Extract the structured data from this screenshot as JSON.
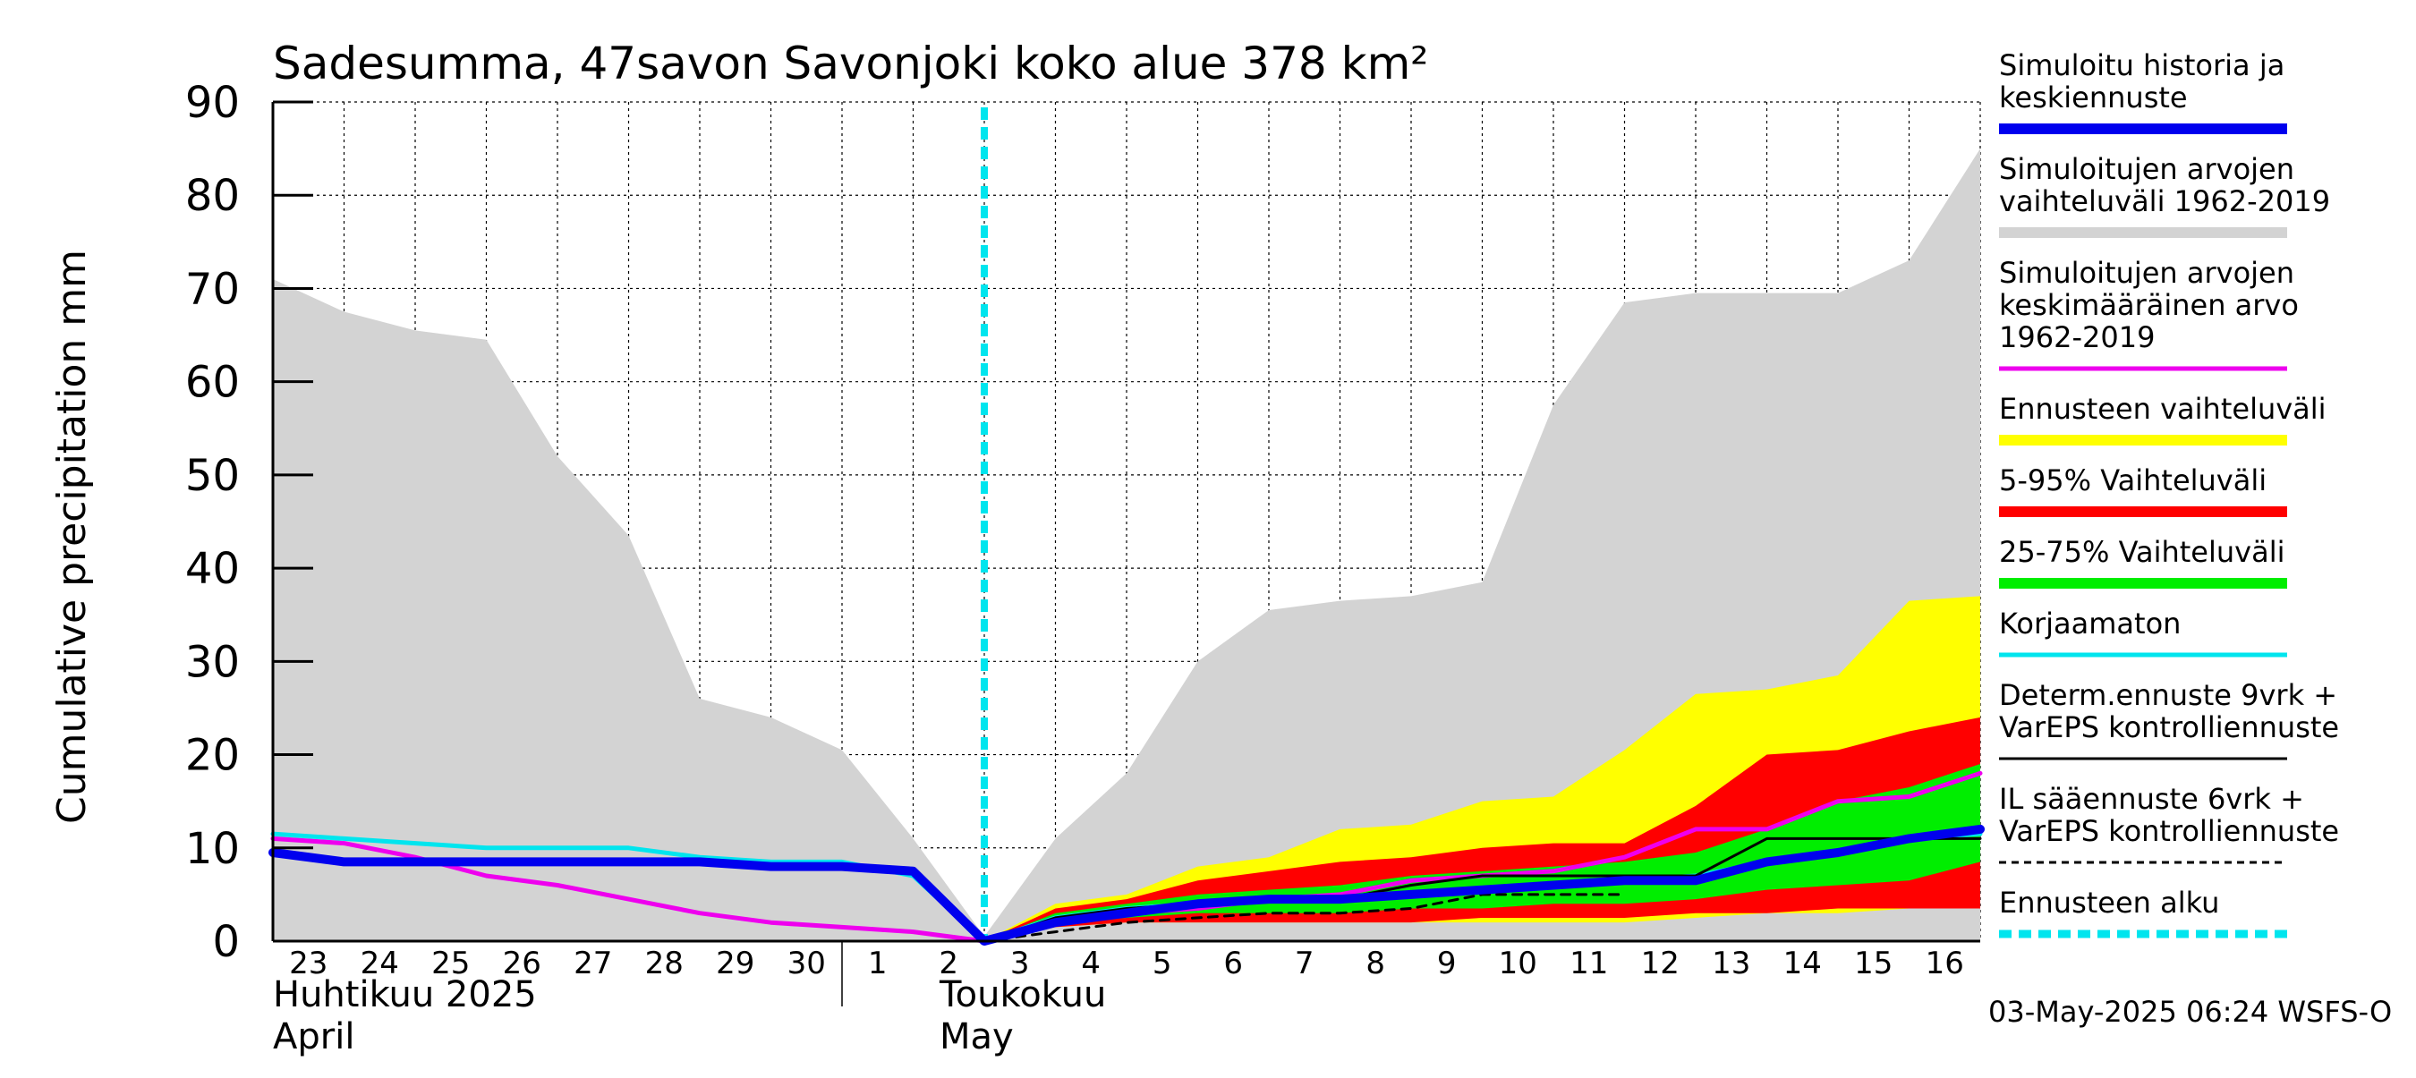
{
  "chart_data": {
    "type": "area",
    "title": "Sadesumma, 47savon Savonjoki koko alue 378 km²",
    "ylabel": "Cumulative precipitation   mm",
    "ylim": [
      0,
      90
    ],
    "yticks": [
      0,
      10,
      20,
      30,
      40,
      50,
      60,
      70,
      80,
      90
    ],
    "grid": true,
    "legend_position": "right",
    "x_labels": [
      "23",
      "24",
      "25",
      "26",
      "27",
      "28",
      "29",
      "30",
      "1",
      "2",
      "3",
      "4",
      "5",
      "6",
      "7",
      "8",
      "9",
      "10",
      "11",
      "12",
      "13",
      "14",
      "15",
      "16"
    ],
    "month_labels": [
      {
        "line1": "Huhtikuu  2025",
        "line2": "April"
      },
      {
        "line1": "Toukokuu",
        "line2": "May"
      }
    ],
    "forecast_start_index": 10,
    "series": [
      {
        "name": "Simuloitujen arvojen vaihteluväli 1962-2019",
        "kind": "band",
        "color": "#d3d3d3",
        "upper": [
          71,
          67.5,
          65.5,
          64.5,
          52,
          43.5,
          26,
          24,
          20.5,
          11,
          0.5,
          11,
          18,
          30,
          35.5,
          36.5,
          37,
          38.5,
          57.5,
          68.5,
          69.5,
          69.5,
          69.5,
          73,
          85
        ],
        "lower": [
          0,
          0,
          0,
          0,
          0,
          0,
          0,
          0,
          0,
          0,
          0,
          0,
          0,
          0,
          0,
          0,
          0,
          0,
          0,
          0,
          0,
          0,
          0,
          0,
          0
        ]
      },
      {
        "name": "Ennusteen vaihteluväli",
        "kind": "band",
        "color": "#ffff00",
        "upper": [
          null,
          null,
          null,
          null,
          null,
          null,
          null,
          null,
          null,
          null,
          0,
          4,
          5,
          8,
          9,
          12,
          12.5,
          15,
          15.5,
          20.5,
          26.5,
          27,
          28.5,
          36.5,
          37
        ],
        "lower": [
          null,
          null,
          null,
          null,
          null,
          null,
          null,
          null,
          null,
          null,
          0,
          1.5,
          2,
          2,
          2,
          2,
          2,
          2,
          2,
          2,
          2.5,
          3,
          3,
          3.5,
          3.5
        ]
      },
      {
        "name": "5-95% Vaihteluväli",
        "kind": "band",
        "color": "#ff0000",
        "upper": [
          null,
          null,
          null,
          null,
          null,
          null,
          null,
          null,
          null,
          null,
          0,
          3.5,
          4.5,
          6.5,
          7.5,
          8.5,
          9,
          10,
          10.5,
          10.5,
          14.5,
          20,
          20.5,
          22.5,
          24
        ],
        "lower": [
          null,
          null,
          null,
          null,
          null,
          null,
          null,
          null,
          null,
          null,
          0,
          1.5,
          2,
          2,
          2,
          2,
          2,
          2.5,
          2.5,
          2.5,
          3,
          3,
          3.5,
          3.5,
          3.5
        ]
      },
      {
        "name": "25-75% Vaihteluväli",
        "kind": "band",
        "color": "#00ee00",
        "upper": [
          null,
          null,
          null,
          null,
          null,
          null,
          null,
          null,
          null,
          null,
          0,
          3,
          4,
          5,
          5.5,
          6,
          7,
          7.5,
          8,
          8.5,
          9.5,
          12,
          15,
          16.5,
          19
        ],
        "lower": [
          null,
          null,
          null,
          null,
          null,
          null,
          null,
          null,
          null,
          null,
          0,
          2,
          2.5,
          3,
          3,
          3,
          3.5,
          3.5,
          4,
          4,
          4.5,
          5.5,
          6,
          6.5,
          8.5
        ]
      },
      {
        "name": "Simuloitujen arvojen keskimääräinen arvo 1962-2019",
        "kind": "line",
        "color": "#ee00ee",
        "width": 5,
        "values": [
          11,
          10.5,
          9,
          7,
          6,
          4.5,
          3,
          2,
          1.5,
          1,
          0,
          2,
          3,
          3.5,
          4.5,
          5,
          6.5,
          7,
          7.5,
          9,
          12,
          12,
          15,
          15.5,
          18
        ]
      },
      {
        "name": "Korjaamaton",
        "kind": "line",
        "color": "#00e5ee",
        "width": 5,
        "values": [
          11.5,
          11,
          10.5,
          10,
          10,
          10,
          9,
          8.5,
          8.5,
          7,
          0,
          2.5,
          3.5,
          4,
          4.5,
          4.5,
          5,
          5.5,
          6,
          6.5,
          7,
          8.5,
          9.5,
          11,
          11.5
        ]
      },
      {
        "name": "Determ.ennuste 9vrk + VarEPS kontrolliennuste",
        "kind": "line",
        "color": "#000000",
        "width": 3,
        "values": [
          null,
          null,
          null,
          null,
          null,
          null,
          null,
          null,
          null,
          null,
          0,
          2.5,
          3.5,
          4,
          4.5,
          4.5,
          6,
          7,
          7,
          7,
          7,
          11,
          11,
          11,
          11
        ]
      },
      {
        "name": "IL sääennuste 6vrk + VarEPS kontrolliennuste",
        "kind": "dashed",
        "color": "#000000",
        "width": 3,
        "values": [
          null,
          null,
          null,
          null,
          null,
          null,
          null,
          null,
          null,
          null,
          0,
          1,
          2,
          2.5,
          3,
          3,
          3.5,
          5,
          5,
          5,
          null,
          null,
          null,
          null,
          null
        ]
      },
      {
        "name": "Simuloitu historia ja keskiennuste",
        "kind": "line",
        "color": "#0000ee",
        "width": 10,
        "values": [
          9.5,
          8.5,
          8.5,
          8.5,
          8.5,
          8.5,
          8.5,
          8,
          8,
          7.5,
          0,
          2,
          3,
          4,
          4.5,
          4.5,
          5,
          5.5,
          6,
          6.5,
          6.5,
          8.5,
          9.5,
          11,
          12
        ]
      }
    ],
    "legend": [
      {
        "lines": [
          "Simuloitu historia ja",
          "keskiennuste"
        ],
        "color": "#0000ee",
        "style": "thick"
      },
      {
        "lines": [
          "Simuloitujen arvojen",
          "vaihteluväli 1962-2019"
        ],
        "color": "#d3d3d3",
        "style": "thick"
      },
      {
        "lines": [
          "Simuloitujen arvojen",
          "keskimääräinen arvo",
          "   1962-2019"
        ],
        "color": "#ee00ee",
        "style": "thin"
      },
      {
        "lines": [
          "Ennusteen vaihteluväli"
        ],
        "color": "#ffff00",
        "style": "thick"
      },
      {
        "lines": [
          "5-95% Vaihteluväli"
        ],
        "color": "#ff0000",
        "style": "thick"
      },
      {
        "lines": [
          "25-75% Vaihteluväli"
        ],
        "color": "#00ee00",
        "style": "thick"
      },
      {
        "lines": [
          "Korjaamaton"
        ],
        "color": "#00e5ee",
        "style": "thin"
      },
      {
        "lines": [
          "Determ.ennuste 9vrk +",
          "VarEPS kontrolliennuste"
        ],
        "color": "#000000",
        "style": "line"
      },
      {
        "lines": [
          "IL sääennuste 6vrk  +",
          "  VarEPS kontrolliennuste"
        ],
        "color": "#000000",
        "style": "dashed"
      },
      {
        "lines": [
          "Ennusteen alku"
        ],
        "color": "#00e5ee",
        "style": "dotted"
      }
    ],
    "timestamp": "03-May-2025 06:24 WSFS-O"
  }
}
